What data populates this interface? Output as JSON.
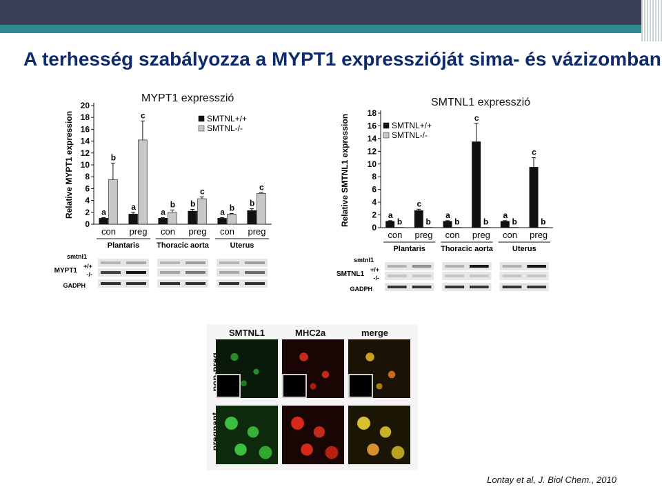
{
  "slide": {
    "title": "A terhesség szabályozza a MYPT1 expresszióját sima- és vázizomban",
    "citation": "Lontay et al, J. Biol Chem., 2010"
  },
  "chart_data": [
    {
      "type": "bar",
      "title": "MYPT1 expresszió",
      "ylabel": "Relative MYPT1 expression",
      "ylim": [
        0,
        20
      ],
      "yticks": [
        "0",
        "2",
        "4",
        "6",
        "8",
        "10",
        "12",
        "14",
        "16",
        "18",
        "20"
      ],
      "groups": [
        "Plantaris",
        "Thoracic aorta",
        "Uterus"
      ],
      "categories": [
        "con",
        "preg",
        "con",
        "preg",
        "con",
        "preg"
      ],
      "series": [
        {
          "name": "SMTNL+/+",
          "color": "#111111",
          "values": [
            1.0,
            1.7,
            1.0,
            2.2,
            1.0,
            2.3
          ],
          "errors": [
            0.1,
            0.3,
            0.1,
            0.3,
            0.1,
            0.3
          ],
          "letters": [
            "a",
            "a",
            "a",
            "b",
            "a",
            "b"
          ]
        },
        {
          "name": "SMTNL-/-",
          "color": "#c8c8c8",
          "values": [
            7.5,
            14.2,
            2.0,
            4.3,
            1.7,
            5.2
          ],
          "errors": [
            2.8,
            3.2,
            0.4,
            0.3,
            0.1,
            0.1
          ],
          "letters": [
            "b",
            "c",
            "b",
            "c",
            "b",
            "c"
          ]
        }
      ],
      "legend_position": "top-right",
      "blot_labels": {
        "row0": "smtnl1",
        "row1": "MYPT1",
        "genotypes": [
          "+/+",
          "-/-"
        ],
        "row2": "GADPH"
      }
    },
    {
      "type": "bar",
      "title": "SMTNL1 expresszió",
      "ylabel": "Relative SMTNL1 expression",
      "ylim": [
        0,
        18
      ],
      "yticks": [
        "0",
        "2",
        "4",
        "6",
        "8",
        "10",
        "12",
        "14",
        "16",
        "18"
      ],
      "groups": [
        "Plantaris",
        "Thoracic aorta",
        "Uterus"
      ],
      "categories": [
        "con",
        "preg",
        "con",
        "preg",
        "con",
        "preg"
      ],
      "series": [
        {
          "name": "SMTNL+/+",
          "color": "#111111",
          "values": [
            1.0,
            2.7,
            1.0,
            13.5,
            1.0,
            9.5
          ],
          "errors": [
            0.1,
            0.2,
            0.1,
            2.9,
            0.1,
            1.5
          ],
          "letters": [
            "a",
            "c",
            "a",
            "c",
            "a",
            "c"
          ]
        },
        {
          "name": "SMTNL-/-",
          "color": "#c8c8c8",
          "values": [
            0.05,
            0.05,
            0.05,
            0.05,
            0.05,
            0.05
          ],
          "errors": [
            0,
            0,
            0,
            0,
            0,
            0
          ],
          "letters": [
            "b",
            "b",
            "b",
            "b",
            "b",
            "b"
          ]
        }
      ],
      "legend_position": "top-left",
      "blot_labels": {
        "row0": "smtnl1",
        "row1": "SMTNL1",
        "genotypes": [
          "+/+",
          "-/-"
        ],
        "row2": "GADPH"
      }
    }
  ],
  "microscopy": {
    "columns": [
      "SMTNL1",
      "MHC2a",
      "merge"
    ],
    "rows": [
      "non-preg.",
      "pregnant"
    ],
    "colors": {
      "green": "#2ea82e",
      "red": "#d42a1a",
      "merge": "#c8a020"
    }
  }
}
